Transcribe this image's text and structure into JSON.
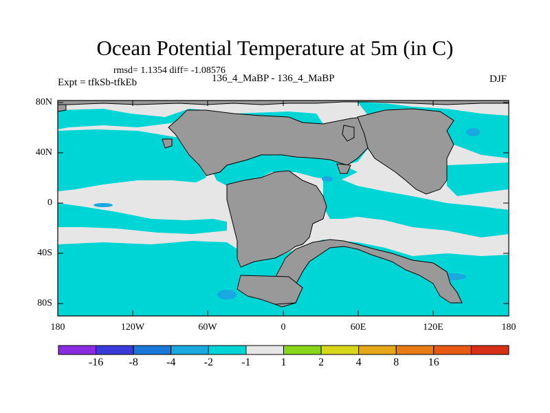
{
  "title": "Ocean Potential Temperature at 5m (in C)",
  "stats": "rmsd= 1.1354 diff= -1.08576",
  "experiment": "Expt = tfkSb-tfkEb",
  "runs": "136_4_MaBP - 136_4_MaBP",
  "season": "DJF",
  "lat_labels": [
    "80N",
    "40N",
    "0",
    "40S",
    "80S"
  ],
  "lon_labels": [
    "180",
    "120W",
    "60W",
    "0",
    "60E",
    "120E",
    "180"
  ],
  "colorbar": {
    "colors": [
      "#8a2be2",
      "#3a3ad8",
      "#1a78d8",
      "#19a8e0",
      "#00d5d5",
      "#e6e6e6",
      "#88d61a",
      "#d8d61a",
      "#e6a81a",
      "#e87c14",
      "#e85a14",
      "#d83018"
    ],
    "labels": [
      "-16",
      "-8",
      "-4",
      "-2",
      "-1",
      "1",
      "2",
      "4",
      "8",
      "16"
    ]
  },
  "legend_colors": {
    "land": "#999999",
    "near_zero": "#e6e6e6",
    "cool": "#00d5d5",
    "colder": "#19a8e0"
  }
}
